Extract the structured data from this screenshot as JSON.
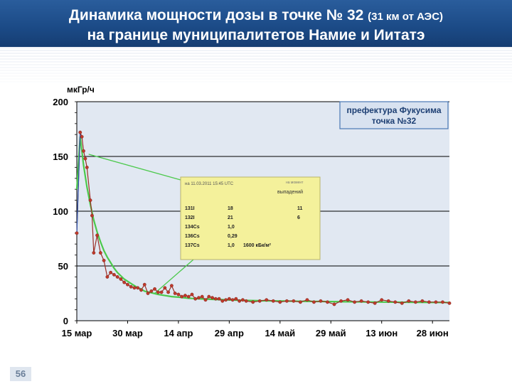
{
  "header": {
    "title_line1": "Динамика мощности дозы в точке № 32 ",
    "title_line1_small": "(31 км от АЭС)",
    "title_line2": "на границе муниципалитетов Намие и Иитатэ"
  },
  "page_number": "56",
  "colors": {
    "banner": "#1b4a86",
    "plot_bg": "#e1e8f2",
    "measured": "#9b2e25",
    "measured_marker": "#c0392b",
    "fit": "#4cc94c",
    "legend_border": "#4a78b5",
    "inset_bg": "#f4f19b"
  },
  "chart_data": {
    "type": "line",
    "ylabel": "мкГр/ч",
    "ylim": [
      0,
      200
    ],
    "y_ticks": [
      "0",
      "50",
      "100",
      "150",
      "200"
    ],
    "y_tick_values": [
      0,
      50,
      100,
      150,
      200
    ],
    "xlim": [
      0,
      110
    ],
    "x_tick_labels": [
      "15 мар",
      "30 мар",
      "14 апр",
      "29 апр",
      "14 май",
      "29 май",
      "13 июн",
      "28 июн"
    ],
    "x_tick_values": [
      0,
      15,
      30,
      45,
      60,
      75,
      90,
      105
    ],
    "legend": {
      "line1": "префектура Фукусима",
      "line2": "точка №32"
    },
    "series": [
      {
        "name": "",
        "color": "#9b2e25",
        "x": [
          0,
          1,
          1.5,
          2,
          2.5,
          3,
          4,
          4.5,
          5,
          6,
          7,
          8,
          9,
          10,
          11,
          12,
          13,
          14,
          15,
          16,
          17,
          18,
          19,
          20,
          21,
          22,
          23,
          24,
          25,
          26,
          27,
          28,
          29,
          30,
          31,
          32,
          33,
          34,
          35,
          36,
          37,
          38,
          39,
          40,
          41,
          42,
          43,
          44,
          45,
          46,
          47,
          48,
          49,
          50,
          52,
          54,
          56,
          58,
          60,
          62,
          64,
          66,
          68,
          70,
          72,
          74,
          76,
          78,
          80,
          82,
          84,
          86,
          88,
          90,
          92,
          94,
          96,
          98,
          100,
          102,
          104,
          106,
          108,
          110
        ],
        "y": [
          80,
          172,
          168,
          155,
          148,
          140,
          110,
          96,
          62,
          78,
          62,
          55,
          40,
          44,
          42,
          40,
          38,
          35,
          33,
          31,
          30,
          30,
          28,
          33,
          25,
          27,
          29,
          26,
          26,
          30,
          26,
          32,
          25,
          24,
          22,
          23,
          22,
          24,
          20,
          21,
          22,
          19,
          22,
          21,
          20,
          20,
          18,
          19,
          20,
          19,
          20,
          18,
          19,
          18,
          17,
          18,
          19,
          18,
          17,
          18,
          18,
          17,
          19,
          17,
          18,
          17,
          15,
          18,
          19,
          17,
          18,
          17,
          16,
          19,
          18,
          17,
          16,
          18,
          17,
          18,
          17,
          17,
          17,
          16
        ]
      },
      {
        "name": "",
        "color": "#4cc94c",
        "x": [
          0,
          1,
          2,
          3,
          4,
          5,
          6,
          7,
          8,
          9,
          10,
          11,
          12,
          13,
          14,
          15,
          16,
          17,
          18,
          19,
          20,
          22,
          24,
          26,
          28,
          30,
          33,
          36,
          40,
          45,
          50,
          55,
          60,
          65,
          70,
          80,
          90,
          100,
          110
        ],
        "y": [
          120,
          168,
          142,
          122,
          106,
          92,
          81,
          72,
          64,
          58,
          53,
          48,
          44,
          41,
          38,
          36,
          34,
          32,
          30,
          29,
          27,
          25.5,
          24,
          23,
          22,
          21.5,
          20.5,
          20,
          19.5,
          19,
          18.5,
          18.2,
          18,
          17.8,
          17.6,
          17.3,
          17,
          16.8,
          16.6
        ]
      }
    ],
    "inset": {
      "header_left": "на 11.03.2011 15:45 UTC",
      "header_right_1": "на момент",
      "header_right_2": "выпадений",
      "rows": [
        {
          "nuclide": "131I",
          "value1": "18",
          "value2": "11"
        },
        {
          "nuclide": "132I",
          "value1": "21",
          "value2": "6"
        },
        {
          "nuclide": "134Cs",
          "value1": "1,0",
          "value2": ""
        },
        {
          "nuclide": "136Cs",
          "value1": "0,29",
          "value2": ""
        },
        {
          "nuclide": "137Cs",
          "value1": "1,0",
          "value2": "1600 кБк/м²"
        }
      ]
    }
  }
}
